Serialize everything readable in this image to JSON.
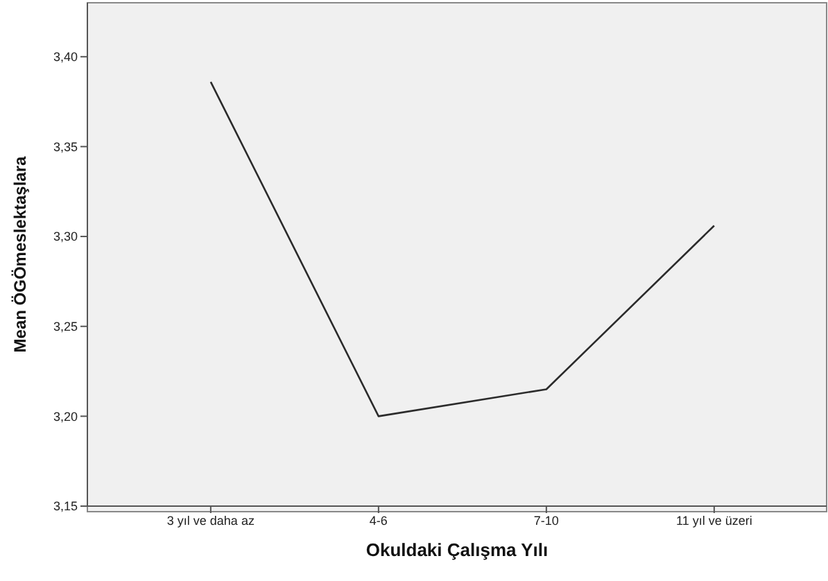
{
  "chart_data": {
    "type": "line",
    "xlabel": "Okuldaki Çalışma Yılı",
    "ylabel": "Mean ÖGÖmeslektaşlara",
    "categories": [
      "3 yıl ve daha az",
      "4-6",
      "7-10",
      "11 yıl ve üzeri"
    ],
    "series": [
      {
        "color": "#2b2b2b",
        "values": [
          3.386,
          3.2,
          3.215,
          3.306
        ]
      }
    ],
    "ylim": [
      3.15,
      3.43
    ],
    "yticks": [
      {
        "value": 3.15,
        "label": "3,15"
      },
      {
        "value": 3.2,
        "label": "3,20"
      },
      {
        "value": 3.25,
        "label": "3,25"
      },
      {
        "value": 3.3,
        "label": "3,30"
      },
      {
        "value": 3.35,
        "label": "3,35"
      },
      {
        "value": 3.4,
        "label": "3,40"
      }
    ],
    "legend": false,
    "marker": "none",
    "line_style": "solid"
  }
}
